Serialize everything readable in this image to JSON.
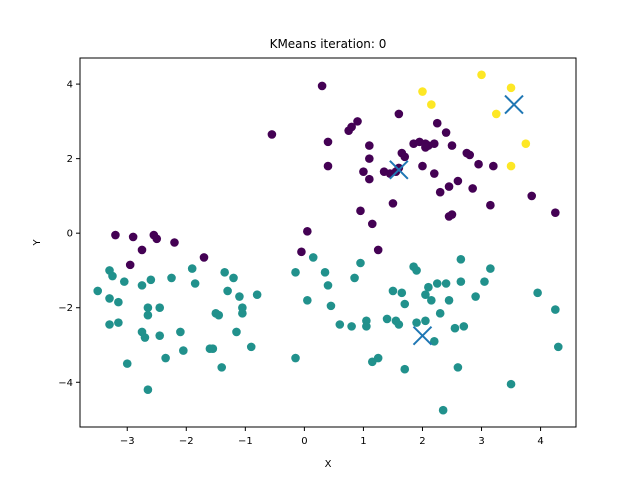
{
  "chart_data": {
    "type": "scatter",
    "title": "KMeans iteration: 0",
    "xlabel": "X",
    "ylabel": "Y",
    "xlim": [
      -3.8,
      4.6
    ],
    "ylim": [
      -5.2,
      4.7
    ],
    "xticks": [
      -3,
      -2,
      -1,
      0,
      1,
      2,
      3,
      4
    ],
    "yticks": [
      -4,
      -2,
      0,
      2,
      4
    ],
    "grid": false,
    "legend": "none",
    "colors": {
      "cluster_0": "#440154",
      "cluster_1": "#21918c",
      "cluster_2": "#fde725",
      "centroid": "#1f77b4"
    },
    "series": [
      {
        "cluster": 0,
        "points": [
          [
            0.3,
            3.95
          ],
          [
            -0.55,
            2.65
          ],
          [
            0.4,
            2.45
          ],
          [
            0.75,
            2.75
          ],
          [
            0.8,
            2.85
          ],
          [
            0.9,
            3.0
          ],
          [
            1.1,
            2.35
          ],
          [
            1.1,
            2.0
          ],
          [
            1.0,
            1.65
          ],
          [
            0.4,
            1.8
          ],
          [
            1.1,
            1.45
          ],
          [
            1.35,
            1.65
          ],
          [
            1.45,
            1.6
          ],
          [
            1.55,
            1.65
          ],
          [
            1.6,
            1.75
          ],
          [
            1.6,
            3.2
          ],
          [
            1.65,
            2.15
          ],
          [
            1.7,
            2.05
          ],
          [
            1.5,
            0.8
          ],
          [
            0.95,
            0.6
          ],
          [
            1.15,
            0.25
          ],
          [
            1.25,
            -0.45
          ],
          [
            0.05,
            0.05
          ],
          [
            -0.05,
            -0.5
          ],
          [
            1.85,
            2.4
          ],
          [
            1.95,
            2.45
          ],
          [
            2.05,
            2.4
          ],
          [
            2.1,
            2.35
          ],
          [
            2.2,
            2.4
          ],
          [
            2.05,
            2.3
          ],
          [
            2.0,
            1.8
          ],
          [
            2.2,
            1.6
          ],
          [
            2.25,
            2.95
          ],
          [
            2.4,
            2.7
          ],
          [
            2.3,
            1.1
          ],
          [
            2.45,
            1.25
          ],
          [
            2.45,
            0.45
          ],
          [
            2.5,
            2.35
          ],
          [
            2.5,
            0.5
          ],
          [
            2.6,
            1.4
          ],
          [
            2.75,
            2.15
          ],
          [
            2.8,
            2.1
          ],
          [
            2.85,
            1.2
          ],
          [
            2.95,
            1.85
          ],
          [
            3.15,
            0.75
          ],
          [
            3.2,
            1.8
          ],
          [
            3.85,
            1.0
          ],
          [
            4.25,
            0.55
          ],
          [
            -3.2,
            -0.05
          ],
          [
            -2.9,
            -0.1
          ],
          [
            -2.55,
            -0.05
          ],
          [
            -2.5,
            -0.15
          ],
          [
            -2.2,
            -0.25
          ],
          [
            -2.95,
            -0.85
          ],
          [
            -2.75,
            -0.45
          ],
          [
            -1.7,
            -0.65
          ]
        ]
      },
      {
        "cluster": 1,
        "points": [
          [
            -3.5,
            -1.55
          ],
          [
            -3.3,
            -1.0
          ],
          [
            -3.25,
            -1.15
          ],
          [
            -3.3,
            -1.75
          ],
          [
            -3.3,
            -2.45
          ],
          [
            -3.15,
            -2.4
          ],
          [
            -3.15,
            -1.85
          ],
          [
            -3.05,
            -1.3
          ],
          [
            -3.0,
            -3.5
          ],
          [
            -2.75,
            -2.65
          ],
          [
            -2.75,
            -1.4
          ],
          [
            -2.7,
            -2.8
          ],
          [
            -2.6,
            -1.25
          ],
          [
            -2.65,
            -2.0
          ],
          [
            -2.65,
            -2.2
          ],
          [
            -2.65,
            -4.2
          ],
          [
            -2.45,
            -2.0
          ],
          [
            -2.45,
            -2.75
          ],
          [
            -2.35,
            -3.35
          ],
          [
            -2.25,
            -1.2
          ],
          [
            -2.1,
            -2.65
          ],
          [
            -2.05,
            -3.15
          ],
          [
            -1.9,
            -0.95
          ],
          [
            -1.85,
            -1.35
          ],
          [
            -1.6,
            -3.1
          ],
          [
            -1.55,
            -3.1
          ],
          [
            -1.5,
            -2.15
          ],
          [
            -1.45,
            -2.2
          ],
          [
            -1.4,
            -3.6
          ],
          [
            -1.35,
            -1.05
          ],
          [
            -1.3,
            -1.55
          ],
          [
            -1.2,
            -1.2
          ],
          [
            -1.15,
            -2.65
          ],
          [
            -1.1,
            -1.7
          ],
          [
            -1.05,
            -2.0
          ],
          [
            -1.05,
            -2.15
          ],
          [
            -0.9,
            -3.05
          ],
          [
            -0.8,
            -1.65
          ],
          [
            -0.15,
            -1.05
          ],
          [
            -0.15,
            -3.35
          ],
          [
            0.05,
            -1.8
          ],
          [
            0.15,
            -0.65
          ],
          [
            0.35,
            -1.05
          ],
          [
            0.4,
            -1.4
          ],
          [
            0.45,
            -1.95
          ],
          [
            0.6,
            -2.45
          ],
          [
            0.8,
            -2.5
          ],
          [
            0.85,
            -1.2
          ],
          [
            0.95,
            -0.8
          ],
          [
            1.05,
            -2.35
          ],
          [
            1.05,
            -2.5
          ],
          [
            1.15,
            -3.45
          ],
          [
            1.25,
            -3.35
          ],
          [
            1.4,
            -2.3
          ],
          [
            1.5,
            -1.55
          ],
          [
            1.55,
            -2.35
          ],
          [
            1.6,
            -2.45
          ],
          [
            1.65,
            -1.6
          ],
          [
            1.7,
            -1.9
          ],
          [
            1.7,
            -3.65
          ],
          [
            1.85,
            -0.9
          ],
          [
            1.9,
            -1.0
          ],
          [
            1.9,
            -2.4
          ],
          [
            2.05,
            -1.65
          ],
          [
            2.05,
            -2.35
          ],
          [
            2.1,
            -1.45
          ],
          [
            2.15,
            -1.8
          ],
          [
            2.2,
            -2.9
          ],
          [
            2.25,
            -1.35
          ],
          [
            2.3,
            -2.15
          ],
          [
            2.35,
            -4.75
          ],
          [
            2.4,
            -1.35
          ],
          [
            2.45,
            -1.8
          ],
          [
            2.55,
            -2.55
          ],
          [
            2.65,
            -0.7
          ],
          [
            2.65,
            -1.3
          ],
          [
            2.7,
            -2.5
          ],
          [
            2.6,
            -3.6
          ],
          [
            2.9,
            -1.7
          ],
          [
            3.05,
            -1.3
          ],
          [
            3.15,
            -0.95
          ],
          [
            3.5,
            -4.05
          ],
          [
            3.95,
            -1.6
          ],
          [
            4.25,
            -2.05
          ],
          [
            4.3,
            -3.05
          ]
        ]
      },
      {
        "cluster": 2,
        "points": [
          [
            2.0,
            3.8
          ],
          [
            2.15,
            3.45
          ],
          [
            3.0,
            4.25
          ],
          [
            3.25,
            3.2
          ],
          [
            3.5,
            3.9
          ],
          [
            3.75,
            2.4
          ],
          [
            3.5,
            1.8
          ]
        ]
      }
    ],
    "centroids": [
      [
        1.6,
        1.7
      ],
      [
        2.0,
        -2.75
      ],
      [
        3.55,
        3.45
      ]
    ]
  }
}
